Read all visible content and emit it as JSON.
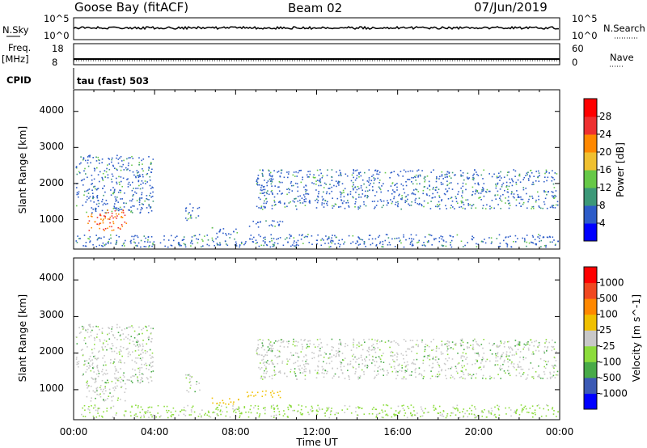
{
  "header": {
    "station": "Goose Bay (fitACF)",
    "beam": "Beam 02",
    "date": "07/Jun/2019"
  },
  "top_panels": {
    "nsky_label": "N.Sky",
    "nsky_ticks": [
      "10^5",
      "10^0"
    ],
    "nsearch_label": "N.Search",
    "nsearch_ticks": [
      "10^5",
      "10^0"
    ],
    "freq_label": "Freq.",
    "freq_unit": "[MHz]",
    "freq_ticks": [
      "18",
      "8"
    ],
    "nave_label": "Nave",
    "nave_ticks": [
      "60",
      "0"
    ],
    "cpid_label": "CPID",
    "cpid_text": "tau (fast) 503"
  },
  "chart_data": [
    {
      "type": "heatmap",
      "name": "power",
      "ylabel": "Slant Range [km]",
      "yticks": [
        "4000",
        "3000",
        "2000",
        "1000"
      ],
      "ylim": [
        180,
        4600
      ],
      "xlim_hours": [
        0,
        24
      ],
      "colorbar": {
        "label": "Power [dB]",
        "ticks": [
          "28",
          "24",
          "20",
          "16",
          "12",
          "8",
          "4"
        ],
        "colors": [
          "#0000ff",
          "#2d5cc8",
          "#3c9878",
          "#66c847",
          "#f0c030",
          "#ff8800",
          "#ee3030",
          "#ff0000"
        ],
        "range": [
          0,
          32
        ]
      },
      "echo_regions": [
        {
          "t_start": 0.1,
          "t_end": 3.9,
          "r_start": 1200,
          "r_end": 2800
        },
        {
          "t_start": 0.6,
          "t_end": 2.6,
          "r_start": 700,
          "r_end": 1300
        },
        {
          "t_start": 5.5,
          "t_end": 6.2,
          "r_start": 950,
          "r_end": 1450
        },
        {
          "t_start": 6.8,
          "t_end": 8.2,
          "r_start": 600,
          "r_end": 800
        },
        {
          "t_start": 8.5,
          "t_end": 10.4,
          "r_start": 800,
          "r_end": 1000
        },
        {
          "t_start": 9.0,
          "t_end": 23.9,
          "r_start": 1300,
          "r_end": 2400
        },
        {
          "t_start": 0.1,
          "t_end": 23.9,
          "r_start": 250,
          "r_end": 600
        }
      ]
    },
    {
      "type": "heatmap",
      "name": "velocity",
      "xlabel": "Time UT",
      "ylabel": "Slant Range [km]",
      "yticks": [
        "4000",
        "3000",
        "2000",
        "1000"
      ],
      "xticks": [
        "00:00",
        "04:00",
        "08:00",
        "12:00",
        "16:00",
        "20:00",
        "00:00"
      ],
      "ylim": [
        180,
        4600
      ],
      "xlim_hours": [
        0,
        24
      ],
      "colorbar": {
        "label": "Velocity [m s^-1]",
        "ticks": [
          "1000",
          "500",
          "100",
          "25",
          "-25",
          "-100",
          "-500",
          "-1000"
        ],
        "colors": [
          "#0000ff",
          "#3c5ab4",
          "#48aa48",
          "#8cdc3c",
          "#c8c8c8",
          "#f0c000",
          "#ff8800",
          "#f04820",
          "#ff0000"
        ],
        "range": [
          -1000,
          1000
        ]
      },
      "echo_regions": [
        {
          "t_start": 0.1,
          "t_end": 3.9,
          "r_start": 1200,
          "r_end": 2800
        },
        {
          "t_start": 0.6,
          "t_end": 2.6,
          "r_start": 700,
          "r_end": 1300
        },
        {
          "t_start": 5.5,
          "t_end": 6.2,
          "r_start": 950,
          "r_end": 1450
        },
        {
          "t_start": 6.8,
          "t_end": 8.2,
          "r_start": 600,
          "r_end": 800
        },
        {
          "t_start": 8.5,
          "t_end": 10.4,
          "r_start": 800,
          "r_end": 1000
        },
        {
          "t_start": 9.0,
          "t_end": 23.9,
          "r_start": 1300,
          "r_end": 2400
        },
        {
          "t_start": 0.1,
          "t_end": 23.9,
          "r_start": 250,
          "r_end": 600
        }
      ]
    }
  ]
}
